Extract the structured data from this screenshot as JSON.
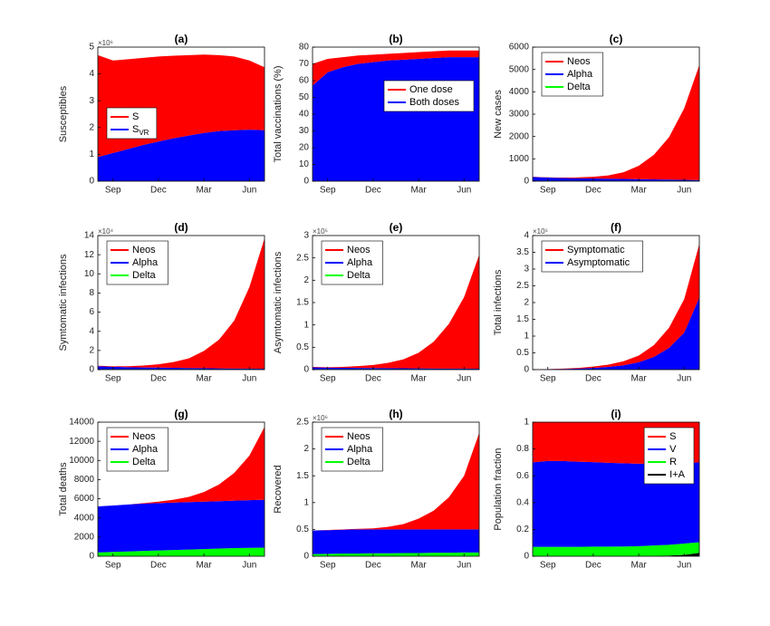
{
  "chart_data": [
    {
      "type": "area",
      "title": "(a)",
      "ylabel": "Susceptibles",
      "y_multiplier": "×10⁶",
      "categories": [
        null,
        "Sep",
        null,
        null,
        "Dec",
        null,
        null,
        "Mar",
        null,
        null,
        "Jun",
        null
      ],
      "series": [
        {
          "name": "S",
          "color": "#ff0000",
          "values": [
            3.8,
            3.45,
            3.35,
            3.25,
            3.17,
            3.08,
            3.0,
            2.92,
            2.83,
            2.75,
            2.58,
            2.35
          ]
        },
        {
          "name": "S",
          "name_sub": "VR",
          "color": "#0000ff",
          "values": [
            0.9,
            1.05,
            1.2,
            1.35,
            1.48,
            1.6,
            1.7,
            1.8,
            1.87,
            1.9,
            1.92,
            1.9
          ]
        }
      ],
      "ylim": [
        0,
        5
      ],
      "yticks": [
        0,
        1,
        2,
        3,
        4,
        5
      ],
      "legend": "center left"
    },
    {
      "type": "area",
      "title": "(b)",
      "ylabel": "Total vaccinations (%)",
      "categories": [
        null,
        "Sep",
        null,
        null,
        "Dec",
        null,
        null,
        "Mar",
        null,
        null,
        "Jun",
        null
      ],
      "series": [
        {
          "name": "One dose",
          "color": "#ff0000",
          "values": [
            13,
            8,
            6,
            5,
            4.5,
            4,
            4,
            4,
            4,
            4,
            4,
            4
          ]
        },
        {
          "name": "Both doses",
          "color": "#0000ff",
          "values": [
            57,
            65,
            68,
            70,
            71,
            72,
            72.5,
            73,
            73.5,
            74,
            74,
            74
          ]
        }
      ],
      "ylim": [
        0,
        80
      ],
      "yticks": [
        0,
        10,
        20,
        30,
        40,
        50,
        60,
        70,
        80
      ],
      "legend": "upper right"
    },
    {
      "type": "area",
      "title": "(c)",
      "ylabel": "New cases",
      "categories": [
        null,
        "Sep",
        null,
        null,
        "Dec",
        null,
        null,
        "Mar",
        null,
        null,
        "Jun",
        null
      ],
      "series": [
        {
          "name": "Neos",
          "color": "#ff0000",
          "values": [
            10,
            10,
            20,
            40,
            80,
            150,
            300,
            600,
            1100,
            1900,
            3200,
            5150
          ]
        },
        {
          "name": "Alpha",
          "color": "#0000ff",
          "values": [
            170,
            140,
            120,
            110,
            100,
            90,
            80,
            70,
            60,
            50,
            40,
            30
          ]
        },
        {
          "name": "Delta",
          "color": "#00ff00",
          "values": [
            20,
            20,
            20,
            20,
            20,
            20,
            20,
            20,
            20,
            20,
            20,
            20
          ]
        }
      ],
      "ylim": [
        0,
        6000
      ],
      "yticks": [
        0,
        1000,
        2000,
        3000,
        4000,
        5000,
        6000
      ],
      "legend": "upper left"
    },
    {
      "type": "area",
      "title": "(d)",
      "ylabel": "Symtomatic infections",
      "y_multiplier": "×10⁴",
      "categories": [
        null,
        "Sep",
        null,
        null,
        "Dec",
        null,
        null,
        "Mar",
        null,
        null,
        "Jun",
        null
      ],
      "series": [
        {
          "name": "Neos",
          "color": "#ff0000",
          "values": [
            0.05,
            0.05,
            0.1,
            0.2,
            0.35,
            0.6,
            1.0,
            1.8,
            3.0,
            5.0,
            8.5,
            13.6
          ]
        },
        {
          "name": "Alpha",
          "color": "#0000ff",
          "values": [
            0.3,
            0.25,
            0.2,
            0.18,
            0.16,
            0.14,
            0.12,
            0.1,
            0.08,
            0.07,
            0.06,
            0.05
          ]
        },
        {
          "name": "Delta",
          "color": "#00ff00",
          "values": [
            0.05,
            0.05,
            0.05,
            0.05,
            0.05,
            0.05,
            0.05,
            0.05,
            0.05,
            0.05,
            0.05,
            0.05
          ]
        }
      ],
      "ylim": [
        0,
        14
      ],
      "yticks": [
        0,
        2,
        4,
        6,
        8,
        10,
        12,
        14
      ],
      "legend": "upper left"
    },
    {
      "type": "area",
      "title": "(e)",
      "ylabel": "Asymtomatic infections",
      "y_multiplier": "×10⁵",
      "categories": [
        null,
        "Sep",
        null,
        null,
        "Dec",
        null,
        null,
        "Mar",
        null,
        null,
        "Jun",
        null
      ],
      "series": [
        {
          "name": "Neos",
          "color": "#ff0000",
          "values": [
            0.01,
            0.01,
            0.02,
            0.04,
            0.07,
            0.12,
            0.2,
            0.35,
            0.6,
            1.0,
            1.6,
            2.55
          ]
        },
        {
          "name": "Alpha",
          "color": "#0000ff",
          "values": [
            0.04,
            0.035,
            0.03,
            0.028,
            0.025,
            0.022,
            0.02,
            0.018,
            0.016,
            0.014,
            0.012,
            0.01
          ]
        },
        {
          "name": "Delta",
          "color": "#00ff00",
          "values": [
            0.01,
            0.01,
            0.01,
            0.01,
            0.01,
            0.01,
            0.01,
            0.01,
            0.01,
            0.01,
            0.01,
            0.01
          ]
        }
      ],
      "ylim": [
        0,
        3
      ],
      "yticks": [
        0,
        0.5,
        1,
        1.5,
        2,
        2.5,
        3
      ],
      "legend": "upper left"
    },
    {
      "type": "area",
      "title": "(f)",
      "ylabel": "Total infections",
      "y_multiplier": "×10⁵",
      "categories": [
        null,
        "Sep",
        null,
        null,
        "Dec",
        null,
        null,
        "Mar",
        null,
        null,
        "Jun",
        null
      ],
      "series": [
        {
          "name": "Symptomatic",
          "color": "#ff0000",
          "values": [
            0.005,
            0.005,
            0.01,
            0.02,
            0.04,
            0.07,
            0.12,
            0.2,
            0.35,
            0.6,
            1.0,
            1.6
          ]
        },
        {
          "name": "Asymptomatic",
          "color": "#0000ff",
          "values": [
            0.005,
            0.01,
            0.02,
            0.03,
            0.05,
            0.08,
            0.13,
            0.22,
            0.38,
            0.65,
            1.1,
            2.15
          ]
        }
      ],
      "ylim": [
        0,
        4
      ],
      "yticks": [
        0,
        0.5,
        1,
        1.5,
        2,
        2.5,
        3,
        3.5,
        4
      ],
      "legend": "upper left"
    },
    {
      "type": "area",
      "title": "(g)",
      "ylabel": "Total deaths",
      "categories": [
        null,
        "Sep",
        null,
        null,
        "Dec",
        null,
        null,
        "Mar",
        null,
        null,
        "Jun",
        null
      ],
      "series": [
        {
          "name": "Neos",
          "color": "#ff0000",
          "values": [
            0,
            0,
            0,
            50,
            150,
            300,
            550,
            1000,
            1750,
            2900,
            4650,
            7600
          ]
        },
        {
          "name": "Alpha",
          "color": "#0000ff",
          "values": [
            4800,
            4850,
            4900,
            4950,
            4950,
            4950,
            4950,
            4950,
            4950,
            4950,
            4980,
            5000
          ]
        },
        {
          "name": "Delta",
          "color": "#00ff00",
          "values": [
            400,
            450,
            500,
            550,
            600,
            650,
            700,
            750,
            800,
            850,
            870,
            900
          ]
        }
      ],
      "ylim": [
        0,
        14000
      ],
      "yticks": [
        0,
        2000,
        4000,
        6000,
        8000,
        10000,
        12000,
        14000
      ],
      "legend": "upper left"
    },
    {
      "type": "area",
      "title": "(h)",
      "ylabel": "Recovered",
      "y_multiplier": "×10⁶",
      "categories": [
        null,
        "Sep",
        null,
        null,
        "Dec",
        null,
        null,
        "Mar",
        null,
        null,
        "Jun",
        null
      ],
      "series": [
        {
          "name": "Neos",
          "color": "#ff0000",
          "values": [
            0,
            0.005,
            0.005,
            0.01,
            0.02,
            0.05,
            0.1,
            0.2,
            0.35,
            0.6,
            1.0,
            1.8
          ]
        },
        {
          "name": "Alpha",
          "color": "#0000ff",
          "values": [
            0.44,
            0.44,
            0.445,
            0.45,
            0.445,
            0.445,
            0.44,
            0.44,
            0.435,
            0.435,
            0.43,
            0.43
          ]
        },
        {
          "name": "Delta",
          "color": "#00ff00",
          "values": [
            0.04,
            0.045,
            0.05,
            0.05,
            0.055,
            0.055,
            0.06,
            0.06,
            0.065,
            0.065,
            0.07,
            0.07
          ]
        }
      ],
      "ylim": [
        0,
        2.5
      ],
      "yticks": [
        0,
        0.5,
        1,
        1.5,
        2,
        2.5
      ],
      "legend": "upper left"
    },
    {
      "type": "area",
      "title": "(i)",
      "ylabel": "Population fraction",
      "categories": [
        null,
        "Sep",
        null,
        null,
        "Dec",
        null,
        null,
        "Mar",
        null,
        null,
        "Jun",
        null
      ],
      "series": [
        {
          "name": "S",
          "color": "#ff0000",
          "values": [
            0.3,
            0.29,
            0.29,
            0.295,
            0.298,
            0.303,
            0.307,
            0.31,
            0.31,
            0.31,
            0.305,
            0.3
          ]
        },
        {
          "name": "V",
          "color": "#0000ff",
          "values": [
            0.63,
            0.64,
            0.64,
            0.635,
            0.63,
            0.625,
            0.62,
            0.615,
            0.61,
            0.605,
            0.6,
            0.595
          ]
        },
        {
          "name": "R",
          "color": "#00ff00",
          "values": [
            0.07,
            0.07,
            0.07,
            0.07,
            0.072,
            0.072,
            0.073,
            0.075,
            0.078,
            0.08,
            0.085,
            0.08
          ]
        },
        {
          "name": "I+A",
          "color": "#000000",
          "values": [
            0,
            0,
            0,
            0,
            0,
            0,
            0,
            0,
            0.002,
            0.005,
            0.01,
            0.025
          ]
        }
      ],
      "ylim": [
        0,
        1
      ],
      "yticks": [
        0,
        0.2,
        0.4,
        0.6,
        0.8,
        1
      ],
      "legend": "upper right"
    }
  ]
}
